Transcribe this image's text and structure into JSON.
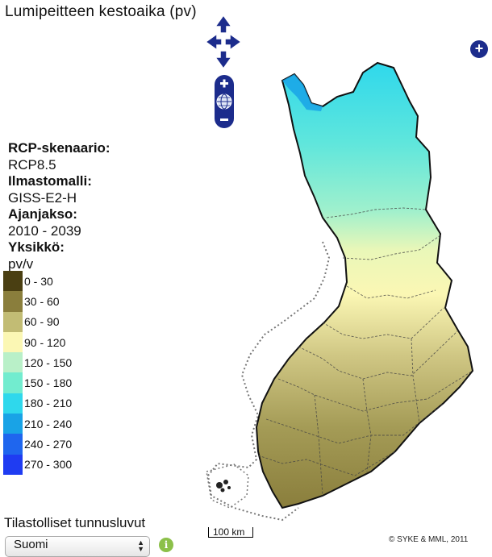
{
  "title": "Lumipeitteen kestoaika (pv)",
  "info": {
    "scenario_label": "RCP-skenaario:",
    "scenario_value": "RCP8.5",
    "model_label": "Ilmastomalli:",
    "model_value": "GISS-E2-H",
    "period_label": "Ajanjakso:",
    "period_value": "2010 - 2039",
    "unit_label": "Yksikkö:",
    "unit_value": "pv/v"
  },
  "legend": [
    {
      "label": "0 - 30",
      "color": "#4a3f12"
    },
    {
      "label": "30 - 60",
      "color": "#8a7e3c"
    },
    {
      "label": "60 - 90",
      "color": "#c2bc74"
    },
    {
      "label": "90 - 120",
      "color": "#fbf7b4"
    },
    {
      "label": "120 - 150",
      "color": "#b9f0c8"
    },
    {
      "label": "150 - 180",
      "color": "#72eccf"
    },
    {
      "label": "180 - 210",
      "color": "#2fd8ec"
    },
    {
      "label": "210 - 240",
      "color": "#19a3e6"
    },
    {
      "label": "240 - 270",
      "color": "#1f66ee"
    },
    {
      "label": "270 - 300",
      "color": "#1f3cf2"
    }
  ],
  "stats_label": "Tilastolliset tunnusluvut",
  "region_select": {
    "value": "Suomi"
  },
  "scale_label": "100 km",
  "copyright": "© SYKE & MML, 2011",
  "colors": {
    "control": "#1c2c8c",
    "info": "#8cc04a"
  },
  "icons": {
    "pan": "pan-arrows-icon",
    "zoom_in": "zoom-in-icon",
    "zoom_out": "zoom-out-icon",
    "globe": "globe-icon",
    "layer": "layer-switcher-icon",
    "info": "info-icon"
  }
}
